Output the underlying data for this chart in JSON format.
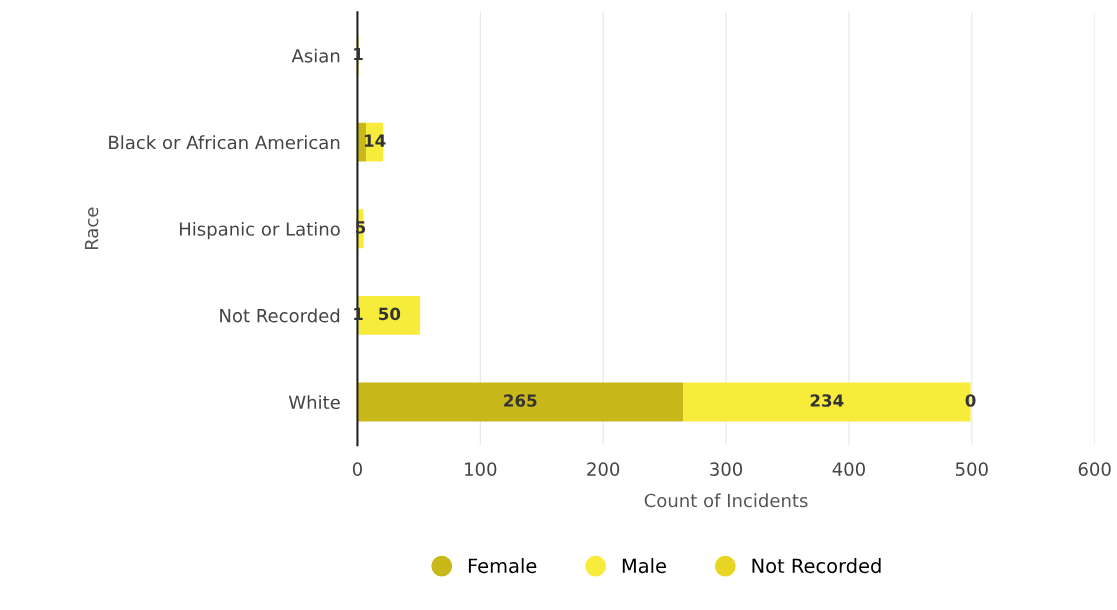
{
  "chart_data": {
    "type": "bar",
    "orientation": "horizontal",
    "stacked": true,
    "xlabel": "Count of Incidents",
    "ylabel": "Race",
    "categories": [
      "Asian",
      "Black or African American",
      "Hispanic or Latino",
      "Not Recorded",
      "White"
    ],
    "series": [
      {
        "name": "Female",
        "color": "#c9b819",
        "values": [
          0,
          7,
          0,
          1,
          265
        ],
        "value_labels": [
          null,
          null,
          null,
          "1",
          "265"
        ]
      },
      {
        "name": "Male",
        "color": "#f7ec3c",
        "values": [
          1,
          14,
          5,
          50,
          234
        ],
        "value_labels": [
          "1",
          "14",
          "5",
          "50",
          "234"
        ]
      },
      {
        "name": "Not Recorded",
        "color": "#e8d523",
        "values": [
          0,
          0,
          0,
          0,
          0
        ],
        "value_labels": [
          null,
          null,
          null,
          null,
          "0"
        ]
      }
    ],
    "xlim": [
      0,
      600
    ],
    "xticks": [
      0,
      100,
      200,
      300,
      400,
      500,
      600
    ],
    "grid": "x",
    "legend": "bottom"
  }
}
